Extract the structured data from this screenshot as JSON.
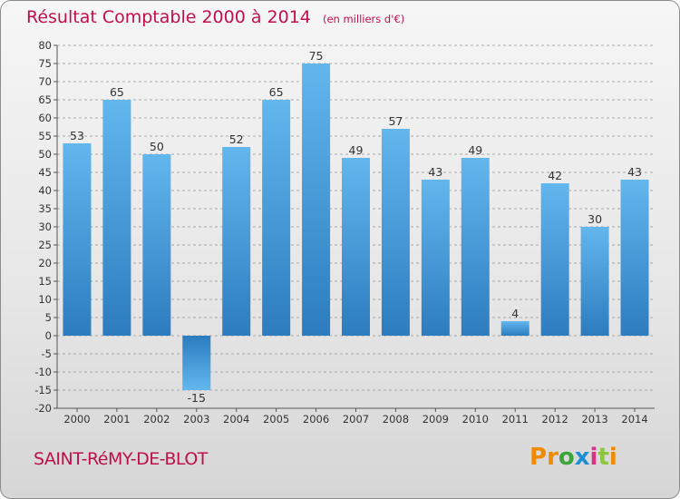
{
  "chart_data": {
    "type": "bar",
    "title": "Résultat Comptable 2000 à 2014",
    "subtitle": "(en milliers d'€)",
    "categories": [
      "2000",
      "2001",
      "2002",
      "2003",
      "2004",
      "2005",
      "2006",
      "2007",
      "2008",
      "2009",
      "2010",
      "2011",
      "2012",
      "2013",
      "2014"
    ],
    "values": [
      53,
      65,
      50,
      -15,
      52,
      65,
      75,
      49,
      57,
      43,
      49,
      4,
      42,
      30,
      43
    ],
    "ylim": [
      -20,
      80
    ],
    "yticks": [
      -20,
      -15,
      -10,
      -5,
      0,
      5,
      10,
      15,
      20,
      25,
      30,
      35,
      40,
      45,
      50,
      55,
      60,
      65,
      70,
      75,
      80
    ],
    "grid": true,
    "colors": {
      "bar_light": "#5fb4ec",
      "bar_dark": "#2f7fc1",
      "grid": "#a8a8a8",
      "title": "#c0104a"
    }
  },
  "footer": {
    "commune": "SAINT-RéMY-DE-BLOT"
  },
  "logo": {
    "letters": [
      "P",
      "r",
      "o",
      "x",
      "i",
      "t",
      "i"
    ],
    "colors": [
      "#f08a00",
      "#f08a00",
      "#3aa63a",
      "#1e8fd5",
      "#d63384",
      "#8cc63f",
      "#f08a00"
    ]
  }
}
